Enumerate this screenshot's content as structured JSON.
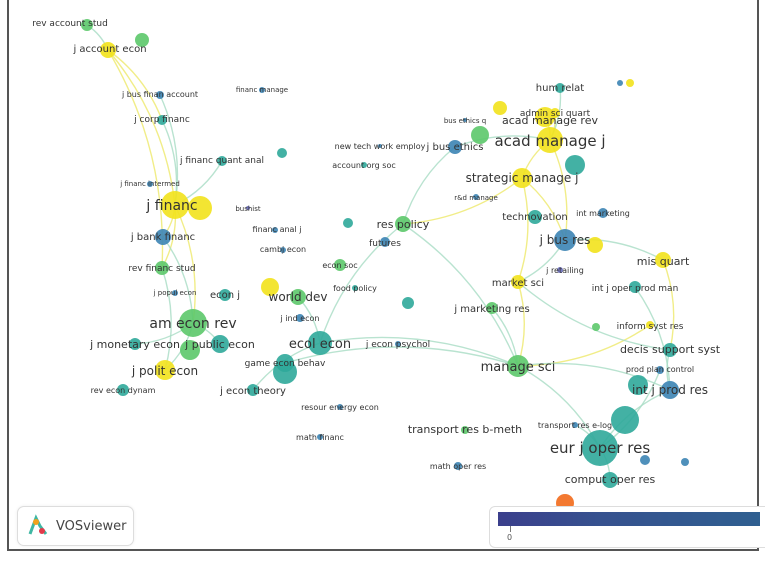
{
  "app": "VOSviewer",
  "color_scale": {
    "min_label": "0",
    "start_color": "#3b3f8c",
    "end_color": "#2f5f90"
  },
  "colors": {
    "yellow": "#f2e21c",
    "green": "#5cc86a",
    "teal": "#2fa89a",
    "blue": "#3c84b4",
    "purple": "#6a6ec0",
    "orange": "#f26a1b"
  },
  "nodes": [
    {
      "label": "rev account stud",
      "color": "green"
    },
    {
      "label": "j account econ",
      "color": "yellow"
    },
    {
      "label": "j bus finan account",
      "color": "blue"
    },
    {
      "label": "financ manage",
      "color": "blue"
    },
    {
      "label": "j corp financ",
      "color": "teal"
    },
    {
      "label": "j financ quant anal",
      "color": "teal"
    },
    {
      "label": "j financ intermed",
      "color": "blue"
    },
    {
      "label": "j financ",
      "color": "yellow"
    },
    {
      "label": "bushist",
      "color": "purple"
    },
    {
      "label": "financ anal j",
      "color": "blue"
    },
    {
      "label": "cambj econ",
      "color": "blue"
    },
    {
      "label": "j bank financ",
      "color": "blue"
    },
    {
      "label": "rev financ stud",
      "color": "green"
    },
    {
      "label": "econ soc",
      "color": "green"
    },
    {
      "label": "j popul econ",
      "color": "blue"
    },
    {
      "label": "econ j",
      "color": "teal"
    },
    {
      "label": "world dev",
      "color": "green"
    },
    {
      "label": "food policy",
      "color": "teal"
    },
    {
      "label": "am econ rev",
      "color": "green"
    },
    {
      "label": "j ind econ",
      "color": "blue"
    },
    {
      "label": "j monetary econ",
      "color": "teal"
    },
    {
      "label": "j public econ",
      "color": "teal"
    },
    {
      "label": "ecol econ",
      "color": "teal"
    },
    {
      "label": "j econ psychol",
      "color": "blue"
    },
    {
      "label": "game econ behav",
      "color": "teal"
    },
    {
      "label": "j polit econ",
      "color": "yellow"
    },
    {
      "label": "rev econ dynam",
      "color": "teal"
    },
    {
      "label": "j econ theory",
      "color": "teal"
    },
    {
      "label": "resour energy econ",
      "color": "blue"
    },
    {
      "label": "math financ",
      "color": "blue"
    },
    {
      "label": "hum relat",
      "color": "teal"
    },
    {
      "label": "admin sci quart",
      "color": "yellow"
    },
    {
      "label": "acad manage rev",
      "color": "yellow"
    },
    {
      "label": "acad manage j",
      "color": "yellow"
    },
    {
      "label": "bus ethics q",
      "color": "blue"
    },
    {
      "label": "new tech work employ",
      "color": "blue"
    },
    {
      "label": "j bus ethics",
      "color": "blue"
    },
    {
      "label": "account org soc",
      "color": "teal"
    },
    {
      "label": "strategic manage j",
      "color": "yellow"
    },
    {
      "label": "r&d manage",
      "color": "blue"
    },
    {
      "label": "technovation",
      "color": "teal"
    },
    {
      "label": "int marketing",
      "color": "blue"
    },
    {
      "label": "res policy",
      "color": "green"
    },
    {
      "label": "futures",
      "color": "blue"
    },
    {
      "label": "j bus res",
      "color": "blue"
    },
    {
      "label": "j retailing",
      "color": "purple"
    },
    {
      "label": "mis quart",
      "color": "yellow"
    },
    {
      "label": "market sci",
      "color": "yellow"
    },
    {
      "label": "int j oper prod man",
      "color": "teal"
    },
    {
      "label": "j marketing res",
      "color": "green"
    },
    {
      "label": "inform syst res",
      "color": "yellow"
    },
    {
      "label": "decis support syst",
      "color": "teal"
    },
    {
      "label": "manage sci",
      "color": "green"
    },
    {
      "label": "prod plan control",
      "color": "blue"
    },
    {
      "label": "int j prod res",
      "color": "blue"
    },
    {
      "label": "transport res b-meth",
      "color": "green"
    },
    {
      "label": "transport res e-log",
      "color": "blue"
    },
    {
      "label": "eur j oper res",
      "color": "teal"
    },
    {
      "label": "math oper res",
      "color": "blue"
    },
    {
      "label": "comput oper res",
      "color": "teal"
    }
  ]
}
